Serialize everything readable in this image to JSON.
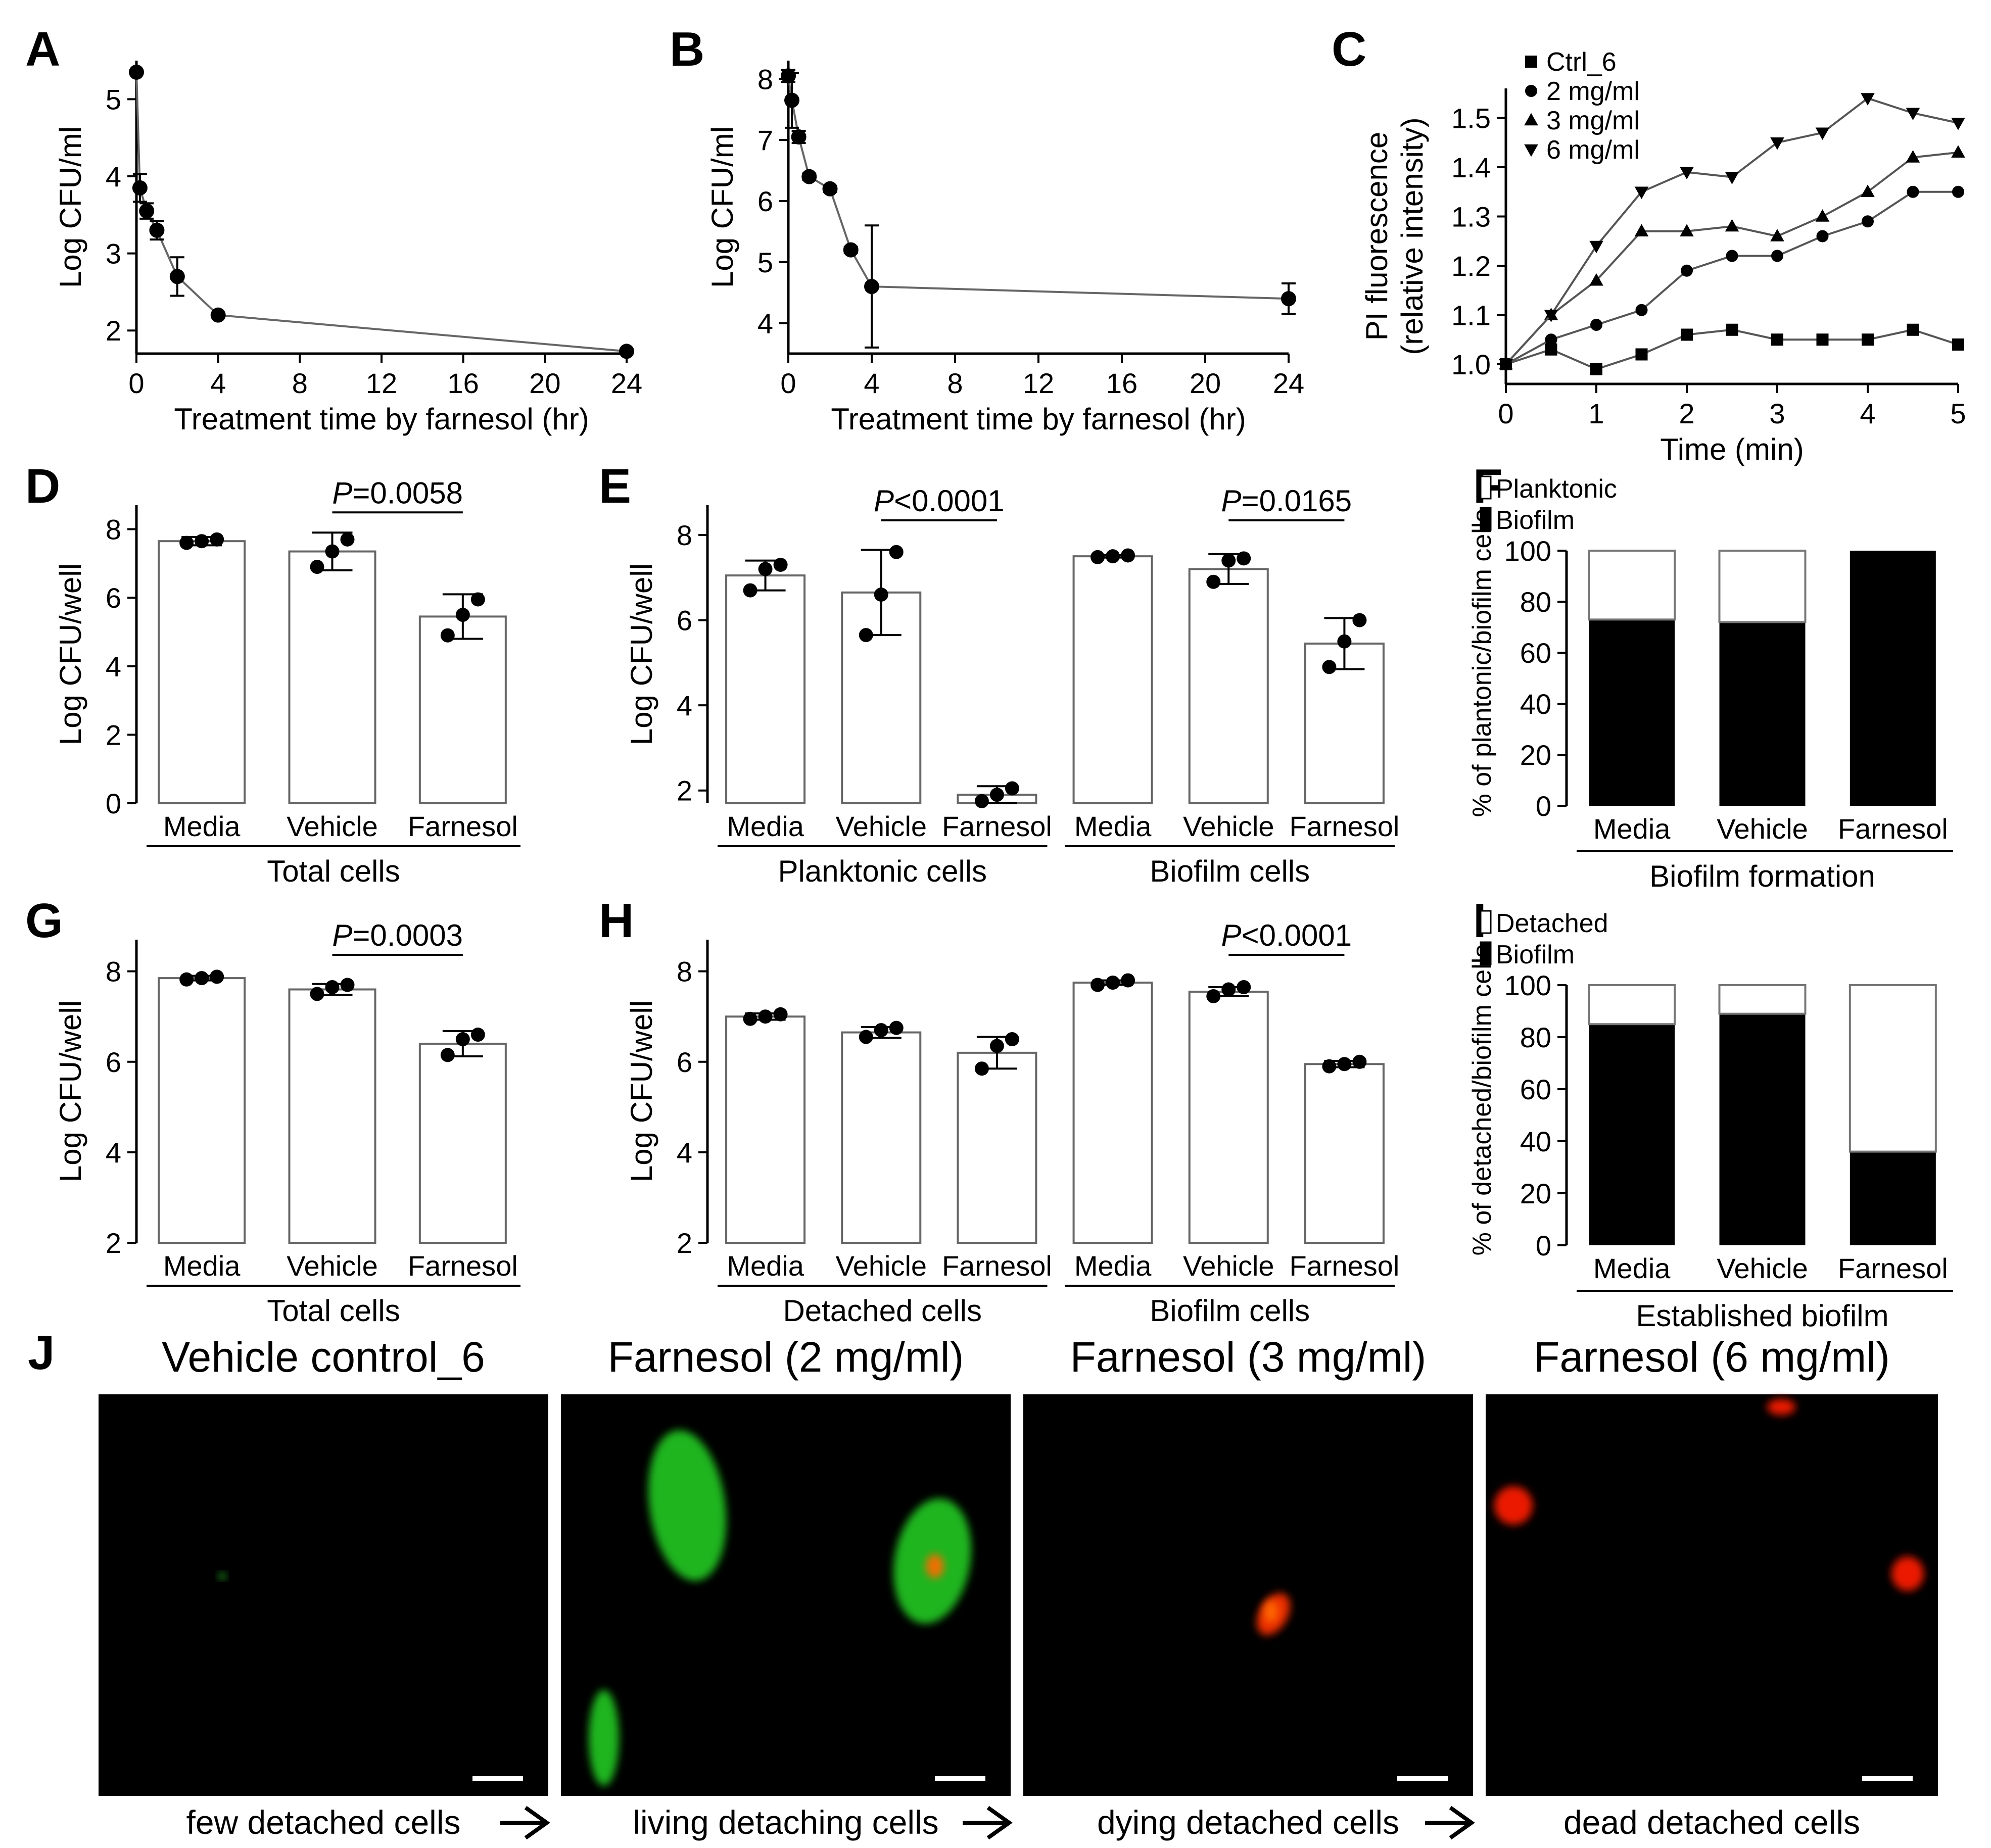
{
  "figure": {
    "panels": {
      "A": {
        "label": "A"
      },
      "B": {
        "label": "B"
      },
      "C": {
        "label": "C"
      },
      "D": {
        "label": "D"
      },
      "E": {
        "label": "E"
      },
      "F": {
        "label": "F"
      },
      "G": {
        "label": "G"
      },
      "H": {
        "label": "H"
      },
      "I": {
        "label": "I"
      },
      "J": {
        "label": "J"
      }
    },
    "images": [
      {
        "title": "Vehicle control_6",
        "caption": "few detached cells",
        "accent": "#2ed12e"
      },
      {
        "title": "Farnesol (2 mg/ml)",
        "caption": "living detaching cells",
        "accent": "#22c522"
      },
      {
        "title": "Farnesol (3 mg/ml)",
        "caption": "dying detached cells",
        "accent": "#ff3300"
      },
      {
        "title": "Farnesol (6 mg/ml)",
        "caption": "dead detached cells",
        "accent": "#ff1a00"
      }
    ]
  },
  "chart_data": [
    {
      "id": "A",
      "type": "line",
      "xlabel": "Treatment time by farnesol (hr)",
      "ylabel": "Log CFU/ml",
      "xlim": [
        0,
        24
      ],
      "ylim": [
        1.7,
        5.5
      ],
      "xticks": [
        0,
        4,
        8,
        12,
        16,
        20,
        24
      ],
      "yticks": [
        2,
        3,
        4,
        5
      ],
      "series": [
        {
          "name": "farnesol",
          "marker": "circle",
          "x": [
            0,
            0.17,
            0.5,
            1,
            2,
            4,
            24
          ],
          "y": [
            5.35,
            3.85,
            3.55,
            3.3,
            2.7,
            2.2,
            1.73
          ],
          "err": [
            0,
            0.18,
            0.1,
            0.12,
            0.25,
            0.03,
            0
          ]
        }
      ]
    },
    {
      "id": "B",
      "type": "line",
      "xlabel": "Treatment time by farnesol (hr)",
      "ylabel": "Log CFU/ml",
      "xlim": [
        0,
        24
      ],
      "ylim": [
        3.5,
        8.3
      ],
      "xticks": [
        0,
        4,
        8,
        12,
        16,
        20,
        24
      ],
      "yticks": [
        4,
        5,
        6,
        7,
        8
      ],
      "series": [
        {
          "name": "farnesol",
          "marker": "circle",
          "x": [
            0,
            0.17,
            0.5,
            1,
            2,
            3,
            4,
            24
          ],
          "y": [
            8.05,
            7.65,
            7.05,
            6.4,
            6.2,
            5.2,
            4.6,
            4.4
          ],
          "err": [
            0.1,
            0.45,
            0.1,
            0.05,
            0.05,
            0.05,
            1.0,
            0.25
          ]
        }
      ]
    },
    {
      "id": "C",
      "type": "line",
      "xlabel": "Time (min)",
      "ylabel": "PI fluorescence\n(relative intensity)",
      "xlim": [
        0,
        5
      ],
      "ylim": [
        0.96,
        1.56
      ],
      "xticks": [
        0,
        1,
        2,
        3,
        4,
        5
      ],
      "yticks": [
        1.0,
        1.1,
        1.2,
        1.3,
        1.4,
        1.5
      ],
      "x": [
        0,
        0.5,
        1,
        1.5,
        2,
        2.5,
        3,
        3.5,
        4,
        4.5,
        5
      ],
      "series": [
        {
          "name": "Ctrl_6",
          "marker": "square",
          "values": [
            1.0,
            1.03,
            0.99,
            1.02,
            1.06,
            1.07,
            1.05,
            1.05,
            1.05,
            1.07,
            1.04
          ]
        },
        {
          "name": "2 mg/ml",
          "marker": "circle",
          "values": [
            1.0,
            1.05,
            1.08,
            1.11,
            1.19,
            1.22,
            1.22,
            1.26,
            1.29,
            1.35,
            1.35
          ]
        },
        {
          "name": "3 mg/ml",
          "marker": "triangle-up",
          "values": [
            1.0,
            1.1,
            1.17,
            1.27,
            1.27,
            1.28,
            1.26,
            1.3,
            1.35,
            1.42,
            1.43
          ]
        },
        {
          "name": "6 mg/ml",
          "marker": "triangle-down",
          "values": [
            1.0,
            1.1,
            1.24,
            1.35,
            1.39,
            1.38,
            1.45,
            1.47,
            1.54,
            1.51,
            1.49
          ]
        }
      ]
    },
    {
      "id": "D",
      "type": "bar",
      "ylabel": "Log CFU/well",
      "ylim": [
        0,
        8.7
      ],
      "yticks": [
        0,
        2,
        4,
        6,
        8
      ],
      "categories": [
        "Media",
        "Vehicle",
        "Farnesol"
      ],
      "group_label": "Total cells",
      "values": [
        7.65,
        7.35,
        5.45
      ],
      "err": [
        0.12,
        0.55,
        0.65
      ],
      "points": [
        [
          7.6,
          7.65,
          7.7
        ],
        [
          6.9,
          7.35,
          7.7
        ],
        [
          4.9,
          5.5,
          5.95
        ]
      ],
      "pvalue": {
        "from": 1,
        "to": 2,
        "pre": "P",
        "text": "=0.0058"
      }
    },
    {
      "id": "E",
      "type": "bar",
      "ylabel": "Log CFU/well",
      "ylim": [
        1.7,
        8.7
      ],
      "yticks": [
        2,
        4,
        6,
        8
      ],
      "categories": [
        "Media",
        "Vehicle",
        "Farnesol",
        "Media",
        "Vehicle",
        "Farnesol"
      ],
      "groups": [
        {
          "label": "Planktonic cells",
          "start": 0,
          "end": 2
        },
        {
          "label": "Biofilm cells",
          "start": 3,
          "end": 5
        }
      ],
      "values": [
        7.05,
        6.65,
        1.9,
        7.5,
        7.2,
        5.45
      ],
      "err": [
        0.35,
        1.0,
        0.2,
        0.03,
        0.35,
        0.6
      ],
      "points": [
        [
          6.7,
          7.2,
          7.3
        ],
        [
          5.65,
          6.6,
          7.6
        ],
        [
          1.75,
          1.9,
          2.05
        ],
        [
          7.48,
          7.5,
          7.52
        ],
        [
          6.9,
          7.4,
          7.45
        ],
        [
          4.9,
          5.5,
          6.0
        ]
      ],
      "pvalues": [
        {
          "from": 1,
          "to": 2,
          "pre": "P",
          "text": "<0.0001"
        },
        {
          "from": 4,
          "to": 5,
          "pre": "P",
          "text": "=0.0165"
        }
      ]
    },
    {
      "id": "F",
      "type": "bar",
      "stacked": true,
      "ylabel": "% of plantonic/biofilm cells",
      "ylim": [
        0,
        100
      ],
      "yticks": [
        0,
        20,
        40,
        60,
        80,
        100
      ],
      "categories": [
        "Media",
        "Vehicle",
        "Farnesol"
      ],
      "group_label": "Biofilm formation",
      "series": [
        {
          "name": "Biofilm",
          "values": [
            73,
            72,
            100
          ]
        },
        {
          "name": "Planktonic",
          "values": [
            27,
            28,
            0
          ]
        }
      ],
      "legend": [
        "Planktonic",
        "Biofilm"
      ]
    },
    {
      "id": "G",
      "type": "bar",
      "ylabel": "Log CFU/well",
      "ylim": [
        2,
        8.7
      ],
      "yticks": [
        2,
        4,
        6,
        8
      ],
      "categories": [
        "Media",
        "Vehicle",
        "Farnesol"
      ],
      "group_label": "Total cells",
      "values": [
        7.85,
        7.6,
        6.4
      ],
      "err": [
        0.05,
        0.12,
        0.28
      ],
      "points": [
        [
          7.82,
          7.85,
          7.88
        ],
        [
          7.5,
          7.65,
          7.7
        ],
        [
          6.15,
          6.5,
          6.6
        ]
      ],
      "pvalue": {
        "from": 1,
        "to": 2,
        "pre": "P",
        "text": "=0.0003"
      }
    },
    {
      "id": "H",
      "type": "bar",
      "ylabel": "Log CFU/well",
      "ylim": [
        2,
        8.7
      ],
      "yticks": [
        2,
        4,
        6,
        8
      ],
      "categories": [
        "Media",
        "Vehicle",
        "Farnesol",
        "Media",
        "Vehicle",
        "Farnesol"
      ],
      "groups": [
        {
          "label": "Detached cells",
          "start": 0,
          "end": 2
        },
        {
          "label": "Biofilm cells",
          "start": 3,
          "end": 5
        }
      ],
      "values": [
        7.0,
        6.65,
        6.2,
        7.75,
        7.55,
        5.95
      ],
      "err": [
        0.07,
        0.12,
        0.35,
        0.05,
        0.1,
        0.07
      ],
      "points": [
        [
          6.95,
          7.0,
          7.05
        ],
        [
          6.55,
          6.7,
          6.75
        ],
        [
          5.85,
          6.35,
          6.5
        ],
        [
          7.7,
          7.75,
          7.8
        ],
        [
          7.45,
          7.6,
          7.65
        ],
        [
          5.9,
          5.95,
          6.0
        ]
      ],
      "pvalues": [
        {
          "from": 4,
          "to": 5,
          "pre": "P",
          "text": "<0.0001"
        }
      ]
    },
    {
      "id": "I",
      "type": "bar",
      "stacked": true,
      "ylabel": "% of detached/biofilm cells",
      "ylim": [
        0,
        100
      ],
      "yticks": [
        0,
        20,
        40,
        60,
        80,
        100
      ],
      "categories": [
        "Media",
        "Vehicle",
        "Farnesol"
      ],
      "group_label": "Established biofilm",
      "series": [
        {
          "name": "Biofilm",
          "values": [
            85,
            89,
            36
          ]
        },
        {
          "name": "Detached",
          "values": [
            15,
            11,
            64
          ]
        }
      ],
      "legend": [
        "Detached",
        "Biofilm"
      ]
    }
  ]
}
